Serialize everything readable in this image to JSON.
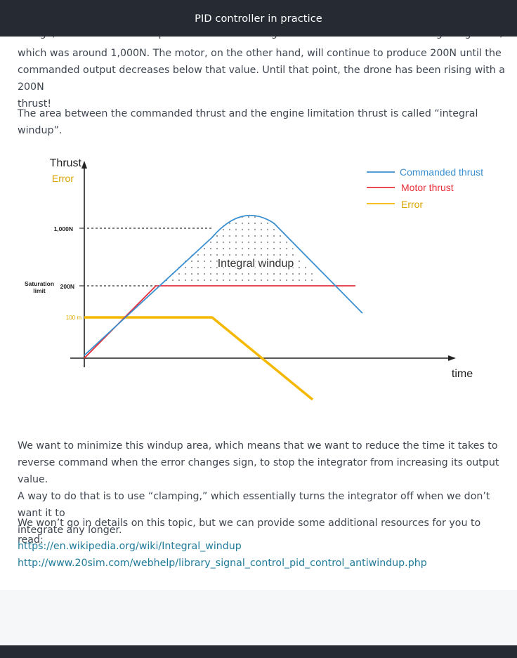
{
  "header": {
    "title": "PID controller in practice"
  },
  "article": {
    "cut_line": "though, the commanded output will start decreasing from where it was before leaving the ground,",
    "para1_lines": [
      "which was around 1,000N. The motor, on the other hand, will continue to produce 200N until the",
      "commanded output decreases below that value. Until that point, the drone has been rising with a 200N",
      "thrust!"
    ],
    "para2": "The area between the commanded thrust and the engine limitation thrust is called “integral windup”.",
    "para3_lines": [
      "We want to minimize this windup area, which means that we want to reduce the time it takes to",
      "reverse command when the error changes sign, to stop the integrator from increasing its output value.",
      "A way to do that is to use “clamping,” which essentially turns the integrator off when we don’t want it to",
      "integrate any longer."
    ],
    "para4": "We won’t go in details on this topic, but we can provide some additional resources for you to read:",
    "links": [
      "https://en.wikipedia.org/wiki/Integral_windup",
      "http://www.20sim.com/webhelp/library_signal_control_pid_control_antiwindup.php"
    ]
  },
  "diagram": {
    "y_axis_label": "Thrust",
    "y_axis_sublabel": "Error",
    "x_axis_label": "time",
    "tick_1000": "1,000N",
    "tick_200": "200N",
    "saturation_line1": "Saturation",
    "saturation_line2": "limit",
    "tick_100m": "100 m",
    "region_label": "Integral windup",
    "legend": [
      {
        "label": "Commanded thrust",
        "color": "#3a8fd0"
      },
      {
        "label": "Motor thrust",
        "color": "#e8303a"
      },
      {
        "label": "Error",
        "color": "#f5b800"
      }
    ]
  }
}
